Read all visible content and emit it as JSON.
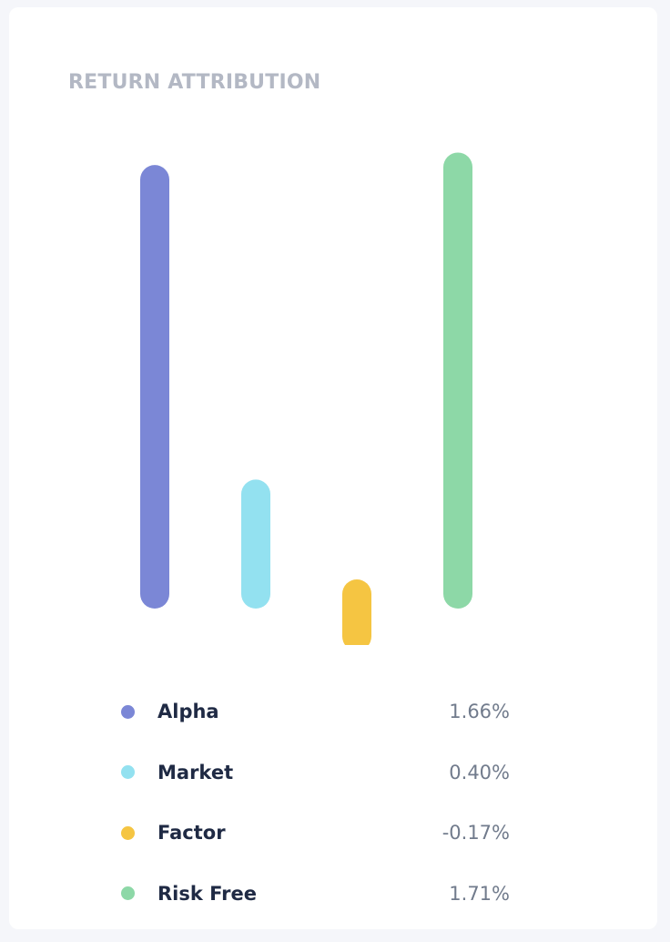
{
  "card": {
    "title": "RETURN ATTRIBUTION"
  },
  "chart_data": {
    "type": "bar",
    "categories": [
      "Alpha",
      "Market",
      "Factor",
      "Risk Free"
    ],
    "values": [
      1.66,
      0.4,
      -0.17,
      1.71
    ],
    "unit": "%",
    "colors": [
      "#7b87d6",
      "#93e1f0",
      "#f5c542",
      "#8dd8a7"
    ],
    "title": "RETURN ATTRIBUTION",
    "xlabel": "",
    "ylabel": ""
  },
  "legend": [
    {
      "label": "Alpha",
      "value": "1.66%",
      "color": "#7b87d6"
    },
    {
      "label": "Market",
      "value": "0.40%",
      "color": "#93e1f0"
    },
    {
      "label": "Factor",
      "value": "-0.17%",
      "color": "#f5c542"
    },
    {
      "label": "Risk Free",
      "value": "1.71%",
      "color": "#8dd8a7"
    }
  ]
}
